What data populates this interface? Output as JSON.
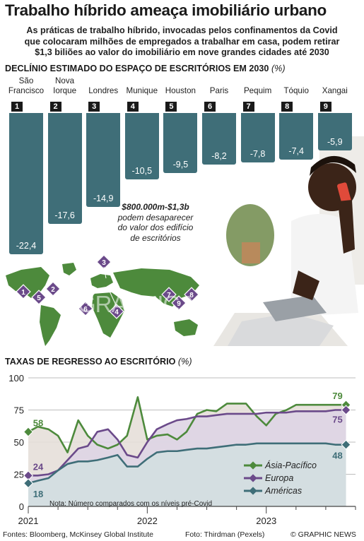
{
  "title": "Trabalho híbrido ameaça imobiliário urbano",
  "subtitle_lines": [
    "As práticas de trabalho híbrido, invocadas pelos confinamentos da Covid",
    "que colocaram milhões de empregados a trabalhar em casa, podem retirar",
    "$1,3 biliões ao valor do imobiliário em nove grandes cidades até 2030"
  ],
  "section1": {
    "title": "DECLÍNIO ESTIMADO DO ESPAÇO DE ESCRITÓRIOS EM 2030",
    "unit": "(%)"
  },
  "section2": {
    "title": "TAXAS DE REGRESSO AO ESCRITÓRIO",
    "unit": "(%)"
  },
  "annotation": {
    "bold": "$800.000m-$1,3b",
    "lines": [
      "podem desaparecer",
      "do valor dos edifício",
      "de escritórios"
    ]
  },
  "note": "Nota: Número comparados com os níveis pré-Covid",
  "sources": "Fontes: Bloomberg, McKinsey Global Institute",
  "photo_credit": "Foto: Thirdman (Pexels)",
  "copyright": "© GRAPHIC NEWS",
  "watermark": "GRAPHIC NEWS",
  "colors": {
    "bar": "#3f6e78",
    "asia": "#4d8a3c",
    "europe": "#6b4a8a",
    "americas": "#3f6e78",
    "map": "#4d8a3c",
    "pin": "#6b4a8a"
  },
  "chart_data": [
    {
      "type": "bar",
      "title": "DECLÍNIO ESTIMADO DO ESPAÇO DE ESCRITÓRIOS EM 2030 (%)",
      "categories": [
        [
          "São",
          "Francisco"
        ],
        [
          "Nova",
          "Iorque"
        ],
        [
          "",
          "Londres"
        ],
        [
          "",
          "Munique"
        ],
        [
          "",
          "Houston"
        ],
        [
          "",
          "Paris"
        ],
        [
          "",
          "Pequim"
        ],
        [
          "",
          "Tóquio"
        ],
        [
          "",
          "Xangai"
        ]
      ],
      "ranks": [
        "1",
        "2",
        "3",
        "4",
        "5",
        "6",
        "7",
        "8",
        "9"
      ],
      "values": [
        -22.4,
        -17.6,
        -14.9,
        -10.5,
        -9.5,
        -8.2,
        -7.8,
        -7.4,
        -5.9
      ],
      "value_labels": [
        "-22,4",
        "-17,6",
        "-14,9",
        "-10,5",
        "-9,5",
        "-8,2",
        "-7,8",
        "-7,4",
        "-5,9"
      ]
    },
    {
      "type": "line",
      "title": "TAXAS DE REGRESSO AO ESCRITÓRIO (%)",
      "ylim": [
        0,
        100
      ],
      "yticks": [
        "0",
        "25",
        "50",
        "75",
        "100"
      ],
      "xlim": [
        2021.0,
        2023.75
      ],
      "xticks": [
        {
          "value": 2021,
          "label": "2021"
        },
        {
          "value": 2022,
          "label": "2022"
        },
        {
          "value": 2023,
          "label": "2023"
        }
      ],
      "series": [
        {
          "name": "Ásia-Pacífico",
          "x": [
            2021.0,
            2021.08,
            2021.17,
            2021.25,
            2021.33,
            2021.42,
            2021.5,
            2021.58,
            2021.67,
            2021.75,
            2021.83,
            2021.92,
            2022.0,
            2022.08,
            2022.17,
            2022.25,
            2022.33,
            2022.42,
            2022.5,
            2022.58,
            2022.67,
            2022.75,
            2022.83,
            2022.92,
            2023.0,
            2023.08,
            2023.17,
            2023.25,
            2023.33,
            2023.42,
            2023.5,
            2023.58,
            2023.67
          ],
          "values": [
            58,
            62,
            60,
            55,
            42,
            67,
            55,
            48,
            45,
            48,
            55,
            85,
            52,
            55,
            56,
            52,
            58,
            72,
            75,
            74,
            80,
            80,
            80,
            70,
            63,
            72,
            75,
            79,
            79,
            79,
            79,
            79,
            79
          ],
          "start_label": "58",
          "end_label": "79"
        },
        {
          "name": "Europa",
          "x": [
            2021.0,
            2021.08,
            2021.17,
            2021.25,
            2021.33,
            2021.42,
            2021.5,
            2021.58,
            2021.67,
            2021.75,
            2021.83,
            2021.92,
            2022.0,
            2022.08,
            2022.17,
            2022.25,
            2022.33,
            2022.42,
            2022.5,
            2022.58,
            2022.67,
            2022.75,
            2022.83,
            2022.92,
            2023.0,
            2023.08,
            2023.17,
            2023.25,
            2023.33,
            2023.42,
            2023.5,
            2023.58,
            2023.67
          ],
          "values": [
            24,
            24,
            25,
            28,
            36,
            45,
            47,
            58,
            60,
            52,
            40,
            38,
            50,
            60,
            64,
            67,
            68,
            70,
            70,
            71,
            72,
            72,
            72,
            72,
            73,
            73,
            73,
            74,
            74,
            74,
            74,
            75,
            75
          ],
          "start_label": "24",
          "end_label": "75"
        },
        {
          "name": "Américas",
          "x": [
            2021.0,
            2021.08,
            2021.17,
            2021.25,
            2021.33,
            2021.42,
            2021.5,
            2021.58,
            2021.67,
            2021.75,
            2021.83,
            2021.92,
            2022.0,
            2022.08,
            2022.17,
            2022.25,
            2022.33,
            2022.42,
            2022.5,
            2022.58,
            2022.67,
            2022.75,
            2022.83,
            2022.92,
            2023.0,
            2023.08,
            2023.17,
            2023.25,
            2023.33,
            2023.42,
            2023.5,
            2023.58,
            2023.67
          ],
          "values": [
            18,
            20,
            22,
            28,
            33,
            35,
            35,
            36,
            38,
            40,
            31,
            31,
            37,
            42,
            43,
            43,
            44,
            45,
            45,
            46,
            47,
            48,
            48,
            49,
            49,
            49,
            49,
            49,
            49,
            49,
            49,
            48,
            48
          ],
          "start_label": "18",
          "end_label": "48"
        }
      ]
    }
  ]
}
